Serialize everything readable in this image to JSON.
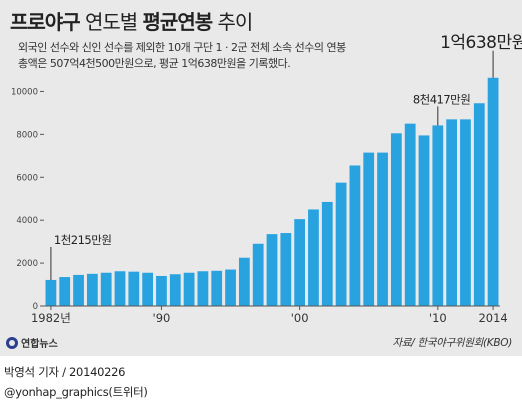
{
  "header": {
    "title_bold1": "프로야구",
    "title_light1": " 연도별 ",
    "title_bold2": "평균연봉",
    "title_light2": " 추이",
    "subtitle": "외국인 선수와 신인 선수를 제외한 10개 구단 1 · 2군 전체 소속 선수의 연봉 총액은 507억4천500만원으로, 평균 1억638만원을 기록했다."
  },
  "colors": {
    "bar": "#29a3e0",
    "background": "#e9e9e9",
    "axis": "#555555"
  },
  "chart_data": {
    "type": "bar",
    "years": [
      1982,
      1983,
      1984,
      1985,
      1986,
      1987,
      1988,
      1989,
      1990,
      1991,
      1992,
      1993,
      1994,
      1995,
      1996,
      1997,
      1998,
      1999,
      2000,
      2001,
      2002,
      2003,
      2004,
      2005,
      2006,
      2007,
      2008,
      2009,
      2010,
      2011,
      2012,
      2013,
      2014
    ],
    "values": [
      1215,
      1350,
      1450,
      1500,
      1550,
      1620,
      1600,
      1550,
      1400,
      1480,
      1550,
      1620,
      1640,
      1700,
      2250,
      2900,
      3350,
      3400,
      4050,
      4500,
      4850,
      5750,
      6550,
      7150,
      7150,
      8050,
      8500,
      7950,
      8417,
      8700,
      8700,
      9450,
      10638
    ],
    "x_tick_labels": [
      {
        "year": 1982,
        "label": "1982년"
      },
      {
        "year": 1990,
        "label": "'90"
      },
      {
        "year": 2000,
        "label": "'00"
      },
      {
        "year": 2010,
        "label": "'10"
      },
      {
        "year": 2014,
        "label": "2014"
      }
    ],
    "y_ticks": [
      0,
      2000,
      4000,
      6000,
      8000,
      10000
    ],
    "ylim": [
      0,
      11000
    ],
    "annotations": [
      {
        "year": 1982,
        "text": "1천215만원"
      },
      {
        "year": 2010,
        "text": "8천417만원"
      },
      {
        "year": 2014,
        "text": "1억638만원"
      }
    ],
    "grid": false
  },
  "footer": {
    "logo_text": "연합뉴스",
    "source": "자료/ 한국야구위원회(KBO)",
    "credit_line1": "박영석 기자 / 20140226",
    "credit_line2": "@yonhap_graphics(트위터)"
  }
}
